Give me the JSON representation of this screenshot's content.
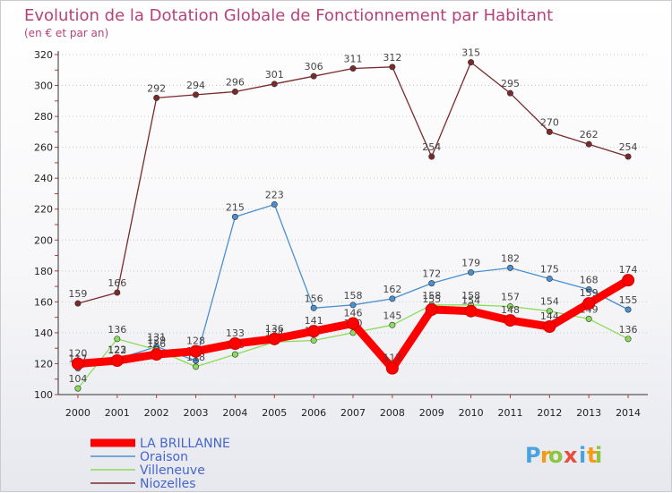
{
  "chart_data": {
    "type": "line",
    "title": "Evolution de la Dotation Globale de Fonctionnement par Habitant",
    "subtitle": "(en € et par an)",
    "xlabel": "",
    "ylabel": "",
    "categories": [
      "2000",
      "2001",
      "2002",
      "2003",
      "2004",
      "2005",
      "2006",
      "2007",
      "2008",
      "2009",
      "2010",
      "2011",
      "2012",
      "2013",
      "2014"
    ],
    "ylim": [
      100,
      320
    ],
    "y_ticks": [
      100,
      120,
      140,
      160,
      180,
      200,
      220,
      240,
      260,
      280,
      300,
      320
    ],
    "grid": "horizontal dotted",
    "legend_position": "bottom-left",
    "series": [
      {
        "name": "Niozelles",
        "color": "#7a2a2a",
        "values": [
          159,
          166,
          292,
          294,
          296,
          301,
          306,
          311,
          312,
          254,
          315,
          295,
          270,
          262,
          254
        ]
      },
      {
        "name": "Oraison",
        "color": "#4a8fd0",
        "values": [
          117,
          123,
          131,
          122,
          215,
          223,
          156,
          158,
          162,
          172,
          179,
          182,
          175,
          168,
          155
        ]
      },
      {
        "name": "Villeneuve",
        "color": "#8adc5a",
        "values": [
          104,
          136,
          129,
          118,
          126,
          134,
          135,
          140,
          145,
          158,
          158,
          157,
          154,
          149,
          136
        ]
      },
      {
        "name": "LA BRILLANNE",
        "color": "#ff0000",
        "values": [
          120,
          122,
          126,
          128,
          133,
          136,
          141,
          146,
          117,
          155,
          154,
          148,
          144,
          159,
          174
        ]
      }
    ],
    "legend_order": [
      "LA BRILLANNE",
      "Oraison",
      "Villeneuve",
      "Niozelles"
    ]
  },
  "logo": {
    "letters": [
      "P",
      "r",
      "o",
      "x",
      "i",
      "t",
      "i"
    ],
    "colors": [
      "#4aa3df",
      "#f39c12",
      "#8cc63f",
      "#e74c3c",
      "#4aa3df",
      "#f39c12",
      "#8cc63f"
    ]
  }
}
